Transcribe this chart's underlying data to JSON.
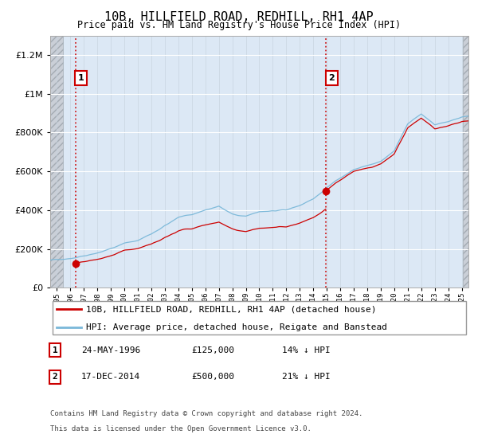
{
  "title": "10B, HILLFIELD ROAD, REDHILL, RH1 4AP",
  "subtitle": "Price paid vs. HM Land Registry's House Price Index (HPI)",
  "legend_line1": "10B, HILLFIELD ROAD, REDHILL, RH1 4AP (detached house)",
  "legend_line2": "HPI: Average price, detached house, Reigate and Banstead",
  "transaction1_label": "1",
  "transaction1_date": "24-MAY-1996",
  "transaction1_price": "£125,000",
  "transaction1_hpi": "14% ↓ HPI",
  "transaction1_year": 1996.38,
  "transaction1_value": 125000,
  "transaction2_label": "2",
  "transaction2_date": "17-DEC-2014",
  "transaction2_price": "£500,000",
  "transaction2_hpi": "21% ↓ HPI",
  "transaction2_year": 2014.96,
  "transaction2_value": 500000,
  "footer1": "Contains HM Land Registry data © Crown copyright and database right 2024.",
  "footer2": "This data is licensed under the Open Government Licence v3.0.",
  "ylim": [
    0,
    1300000
  ],
  "xlim_start": 1994.5,
  "xlim_end": 2025.5,
  "hpi_color": "#7ab8d9",
  "price_color": "#cc0000",
  "dashed_line_color": "#cc0000",
  "plot_bg_color": "#dce8f5",
  "grid_color": "#ffffff",
  "hatch_color": "#c0c8d0"
}
